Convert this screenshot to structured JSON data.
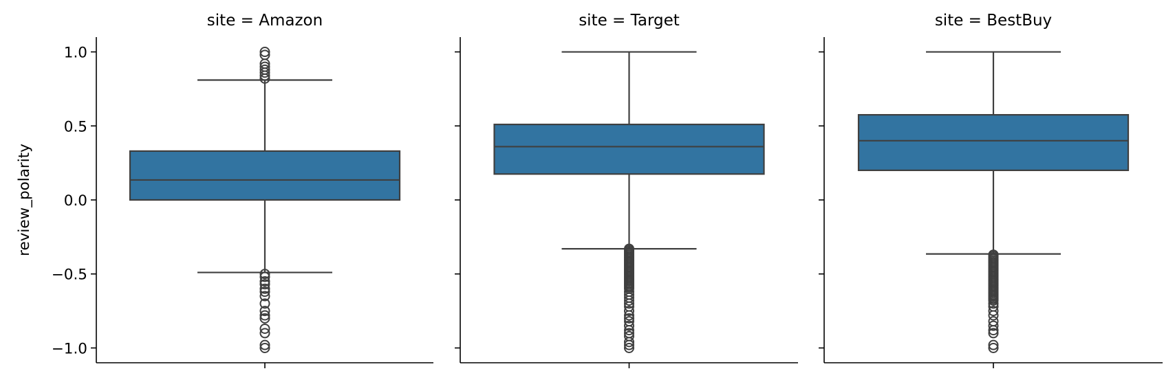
{
  "chart_data": {
    "type": "box",
    "ylabel": "review_polarity",
    "ylim": [
      -1.1,
      1.1
    ],
    "yticks": [
      -1.0,
      -0.5,
      0.0,
      0.5,
      1.0
    ],
    "ytick_labels": [
      "−1.0",
      "−0.5",
      "0.0",
      "0.5",
      "1.0"
    ],
    "box_color": "#3274a1",
    "line_color": "#3f3f3f",
    "grid": false,
    "panels": [
      {
        "title": "site = Amazon",
        "whisker_low": -0.49,
        "q1": 0.0,
        "median": 0.135,
        "q3": 0.33,
        "whisker_high": 0.81,
        "outliers_low": [
          -0.5,
          -0.52,
          -0.55,
          -0.57,
          -0.6,
          -0.62,
          -0.65,
          -0.7,
          -0.75,
          -0.78,
          -0.8,
          -0.87,
          -0.9,
          -0.98,
          -1.0
        ],
        "outliers_high": [
          0.82,
          0.84,
          0.86,
          0.88,
          0.9,
          0.92,
          0.98,
          1.0
        ]
      },
      {
        "title": "site = Target",
        "whisker_low": -0.33,
        "q1": 0.175,
        "median": 0.36,
        "q3": 0.51,
        "whisker_high": 1.0,
        "outliers_low": [
          -0.33,
          -0.34,
          -0.35,
          -0.36,
          -0.37,
          -0.38,
          -0.39,
          -0.4,
          -0.41,
          -0.42,
          -0.43,
          -0.44,
          -0.45,
          -0.46,
          -0.47,
          -0.48,
          -0.49,
          -0.5,
          -0.51,
          -0.52,
          -0.53,
          -0.54,
          -0.55,
          -0.56,
          -0.57,
          -0.58,
          -0.59,
          -0.6,
          -0.62,
          -0.64,
          -0.66,
          -0.68,
          -0.7,
          -0.72,
          -0.75,
          -0.78,
          -0.8,
          -0.82,
          -0.85,
          -0.88,
          -0.9,
          -0.92,
          -0.96,
          -0.98,
          -1.0
        ],
        "outliers_high": []
      },
      {
        "title": "site = BestBuy",
        "whisker_low": -0.365,
        "q1": 0.2,
        "median": 0.4,
        "q3": 0.575,
        "whisker_high": 1.0,
        "outliers_low": [
          -0.37,
          -0.38,
          -0.39,
          -0.4,
          -0.41,
          -0.42,
          -0.43,
          -0.44,
          -0.45,
          -0.46,
          -0.47,
          -0.48,
          -0.49,
          -0.5,
          -0.51,
          -0.52,
          -0.53,
          -0.54,
          -0.55,
          -0.56,
          -0.57,
          -0.58,
          -0.59,
          -0.6,
          -0.61,
          -0.62,
          -0.63,
          -0.64,
          -0.65,
          -0.66,
          -0.67,
          -0.68,
          -0.7,
          -0.72,
          -0.75,
          -0.78,
          -0.82,
          -0.85,
          -0.88,
          -0.9,
          -0.98,
          -1.0
        ],
        "outliers_high": []
      }
    ]
  }
}
